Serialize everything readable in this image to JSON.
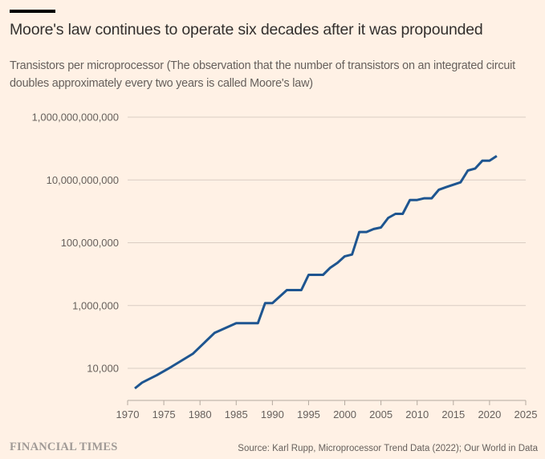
{
  "header": {
    "title": "Moore's law continues to operate six decades after it was propounded",
    "subtitle": "Transistors per microprocessor (The observation that the number of transistors on an integrated circuit doubles approximately every two years is called Moore's law)"
  },
  "footer": {
    "brand": "FINANCIAL TIMES",
    "source": "Source: Karl Rupp, Microprocessor Trend Data (2022); Our World in Data"
  },
  "colors": {
    "background": "#fff1e5",
    "line": "#1e5590",
    "grid": "#d9cdc3"
  },
  "chart_data": {
    "type": "line",
    "title": "Moore's law continues to operate six decades after it was propounded",
    "subtitle": "Transistors per microprocessor",
    "xlabel": "",
    "ylabel": "",
    "yscale": "log",
    "xlim": [
      1970,
      2025
    ],
    "ylim": [
      1000,
      1000000000000
    ],
    "grid": true,
    "legend": "none",
    "x_ticks": [
      1970,
      1975,
      1980,
      1985,
      1990,
      1995,
      2000,
      2005,
      2010,
      2015,
      2020,
      2025
    ],
    "y_ticks": [
      {
        "value": 10000,
        "label": "10,000"
      },
      {
        "value": 1000000,
        "label": "1,000,000"
      },
      {
        "value": 100000000,
        "label": "100,000,000"
      },
      {
        "value": 10000000000,
        "label": "10,000,000,000"
      },
      {
        "value": 1000000000000,
        "label": "1,000,000,000,000"
      }
    ],
    "series": [
      {
        "name": "Transistors per microprocessor",
        "x": [
          1971,
          1972,
          1973,
          1974,
          1976,
          1979,
          1982,
          1985,
          1988,
          1989,
          1990,
          1992,
          1994,
          1995,
          1997,
          1998,
          1999,
          2000,
          2001,
          2002,
          2003,
          2004,
          2005,
          2006,
          2007,
          2008,
          2009,
          2010,
          2011,
          2012,
          2013,
          2014,
          2016,
          2017,
          2018,
          2019,
          2020,
          2021
        ],
        "values": [
          2300,
          3500,
          4600,
          6000,
          11000,
          29000,
          134000,
          275000,
          275000,
          1200000,
          1200000,
          3100000,
          3100000,
          9500000,
          9500000,
          16000000,
          23000000,
          37000000,
          42000000,
          220000000,
          220000000,
          273000000,
          306000000,
          620000000,
          830000000,
          830000000,
          2300000000,
          2300000000,
          2600000000,
          2600000000,
          4900000000,
          5900000000,
          8400000000,
          20000000000,
          23000000000,
          41000000000,
          41000000000,
          58000000000
        ]
      }
    ]
  }
}
